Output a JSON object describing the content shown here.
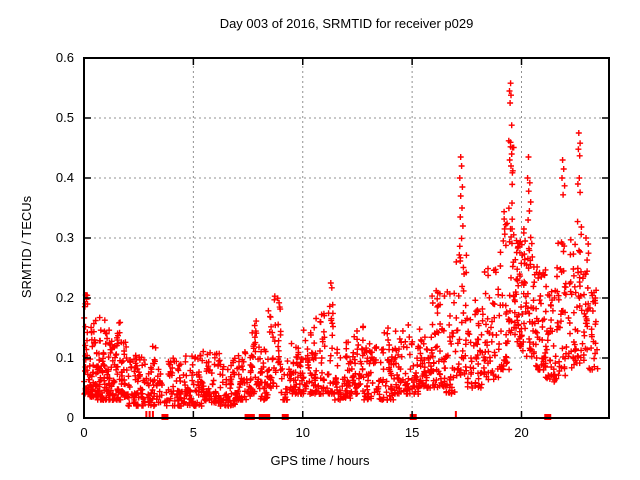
{
  "chart_data": {
    "type": "scatter",
    "title": "Day 003 of 2016, SRMTID for receiver p029",
    "xlabel": "GPS time / hours",
    "ylabel": "SRMTID / TECUs",
    "xlim": [
      0,
      24
    ],
    "ylim": [
      0,
      0.6
    ],
    "xticks": [
      [
        0,
        "0"
      ],
      [
        5,
        "5"
      ],
      [
        10,
        "10"
      ],
      [
        15,
        "15"
      ],
      [
        20,
        "20"
      ]
    ],
    "yticks": [
      [
        0,
        "0"
      ],
      [
        0.1,
        "0.1"
      ],
      [
        0.2,
        "0.2"
      ],
      [
        0.3,
        "0.3"
      ],
      [
        0.4,
        "0.4"
      ],
      [
        0.5,
        "0.5"
      ],
      [
        0.6,
        "0.6"
      ]
    ],
    "grid": {
      "visible": true,
      "color": "#909090",
      "dash": "2,3"
    },
    "axis_color": "#000000",
    "text_color": "#000000",
    "background_color": "#ffffff",
    "marker": {
      "shape": "plus",
      "color": "#ff0000",
      "size": 7
    },
    "legend": "none",
    "series": [
      {
        "name": "SRMTID",
        "color": "#ff0000",
        "clusters_format": [
          "hour_start",
          "hour_end",
          "y_min_TECUs",
          "y_max_TECUs",
          "point_count",
          "skew_toward_min"
        ],
        "clusters": [
          [
            0.0,
            0.25,
            0.04,
            0.21,
            35,
            2.2
          ],
          [
            0.25,
            0.6,
            0.035,
            0.165,
            45,
            2.0
          ],
          [
            0.6,
            0.9,
            0.03,
            0.17,
            40,
            2.0
          ],
          [
            0.9,
            1.25,
            0.03,
            0.17,
            45,
            2.0
          ],
          [
            1.25,
            1.7,
            0.03,
            0.16,
            50,
            2.0
          ],
          [
            1.7,
            2.0,
            0.035,
            0.14,
            35,
            1.8
          ],
          [
            2.0,
            2.6,
            0.02,
            0.105,
            50,
            1.6
          ],
          [
            2.6,
            3.3,
            0.02,
            0.12,
            50,
            1.6
          ],
          [
            3.3,
            3.6,
            0.025,
            0.1,
            18,
            1.6
          ],
          [
            3.6,
            3.85,
            0.02,
            0.05,
            6,
            1.2
          ],
          [
            3.85,
            4.6,
            0.02,
            0.1,
            55,
            1.6
          ],
          [
            4.6,
            5.4,
            0.02,
            0.11,
            60,
            1.6
          ],
          [
            5.4,
            6.2,
            0.025,
            0.115,
            60,
            1.6
          ],
          [
            6.2,
            7.0,
            0.02,
            0.1,
            60,
            1.5
          ],
          [
            7.0,
            7.4,
            0.03,
            0.13,
            30,
            1.6
          ],
          [
            7.4,
            7.6,
            0.03,
            0.065,
            8,
            1.2
          ],
          [
            7.6,
            8.0,
            0.04,
            0.165,
            40,
            1.8
          ],
          [
            8.0,
            8.4,
            0.03,
            0.12,
            35,
            1.6
          ],
          [
            8.4,
            9.0,
            0.05,
            0.2,
            45,
            1.9
          ],
          [
            9.0,
            9.35,
            0.03,
            0.1,
            16,
            1.5
          ],
          [
            9.35,
            10.0,
            0.04,
            0.13,
            50,
            1.7
          ],
          [
            10.0,
            10.6,
            0.04,
            0.155,
            50,
            1.7
          ],
          [
            10.6,
            11.45,
            0.04,
            0.21,
            60,
            2.0
          ],
          [
            11.45,
            12.2,
            0.03,
            0.13,
            55,
            1.6
          ],
          [
            12.2,
            12.8,
            0.04,
            0.155,
            45,
            1.7
          ],
          [
            12.8,
            13.4,
            0.03,
            0.135,
            45,
            1.6
          ],
          [
            13.4,
            14.2,
            0.03,
            0.15,
            55,
            1.7
          ],
          [
            14.2,
            14.8,
            0.04,
            0.155,
            45,
            1.7
          ],
          [
            14.8,
            15.35,
            0.04,
            0.16,
            35,
            1.7
          ],
          [
            15.35,
            15.9,
            0.05,
            0.14,
            45,
            1.6
          ],
          [
            15.9,
            16.45,
            0.05,
            0.21,
            45,
            1.8
          ],
          [
            16.45,
            17.0,
            0.04,
            0.22,
            45,
            1.7
          ],
          [
            17.0,
            17.5,
            0.07,
            0.3,
            40,
            1.6
          ],
          [
            17.5,
            18.3,
            0.05,
            0.2,
            55,
            1.5
          ],
          [
            18.3,
            19.0,
            0.06,
            0.25,
            50,
            1.5
          ],
          [
            19.0,
            19.45,
            0.08,
            0.35,
            40,
            1.7
          ],
          [
            19.45,
            19.65,
            0.12,
            0.46,
            25,
            1.3
          ],
          [
            19.65,
            20.1,
            0.11,
            0.3,
            50,
            1.2
          ],
          [
            20.1,
            20.6,
            0.1,
            0.33,
            50,
            1.4
          ],
          [
            20.6,
            21.1,
            0.08,
            0.26,
            45,
            1.5
          ],
          [
            21.1,
            21.6,
            0.06,
            0.22,
            40,
            1.5
          ],
          [
            21.6,
            22.1,
            0.07,
            0.3,
            40,
            1.6
          ],
          [
            22.1,
            22.5,
            0.08,
            0.3,
            30,
            1.3
          ],
          [
            22.5,
            22.8,
            0.09,
            0.34,
            25,
            1.3
          ],
          [
            22.8,
            23.2,
            0.08,
            0.28,
            30,
            1.4
          ],
          [
            23.2,
            23.5,
            0.08,
            0.22,
            22,
            1.4
          ]
        ],
        "peak_points": [
          [
            0.08,
            0.205
          ],
          [
            0.12,
            0.198
          ],
          [
            0.16,
            0.19
          ],
          [
            8.72,
            0.203
          ],
          [
            11.28,
            0.225
          ],
          [
            11.33,
            0.217
          ],
          [
            16.1,
            0.212
          ],
          [
            17.22,
            0.435
          ],
          [
            17.26,
            0.42
          ],
          [
            17.18,
            0.4
          ],
          [
            17.3,
            0.385
          ],
          [
            17.22,
            0.37
          ],
          [
            17.28,
            0.35
          ],
          [
            17.2,
            0.335
          ],
          [
            17.32,
            0.32
          ],
          [
            19.5,
            0.558
          ],
          [
            19.45,
            0.545
          ],
          [
            19.52,
            0.538
          ],
          [
            19.48,
            0.525
          ],
          [
            19.55,
            0.488
          ],
          [
            19.42,
            0.462
          ],
          [
            19.5,
            0.452
          ],
          [
            19.55,
            0.44
          ],
          [
            19.46,
            0.43
          ],
          [
            19.52,
            0.42
          ],
          [
            19.6,
            0.412
          ],
          [
            20.32,
            0.435
          ],
          [
            20.28,
            0.4
          ],
          [
            20.38,
            0.392
          ],
          [
            20.33,
            0.378
          ],
          [
            20.42,
            0.36
          ],
          [
            20.36,
            0.345
          ],
          [
            20.3,
            0.33
          ],
          [
            21.88,
            0.43
          ],
          [
            21.93,
            0.415
          ],
          [
            21.85,
            0.4
          ],
          [
            21.97,
            0.387
          ],
          [
            21.9,
            0.372
          ],
          [
            22.62,
            0.475
          ],
          [
            22.68,
            0.458
          ],
          [
            22.6,
            0.448
          ],
          [
            22.66,
            0.437
          ],
          [
            22.64,
            0.4
          ],
          [
            22.58,
            0.39
          ],
          [
            22.68,
            0.376
          ],
          [
            22.95,
            0.3
          ],
          [
            23.05,
            0.29
          ]
        ],
        "baseline_squares_hr": [
          3.7,
          7.5,
          7.65,
          8.15,
          8.35,
          9.2,
          15.05,
          21.2
        ],
        "baseline_ticks_hr": [
          2.85,
          3.0,
          3.15,
          17.0
        ]
      }
    ]
  }
}
